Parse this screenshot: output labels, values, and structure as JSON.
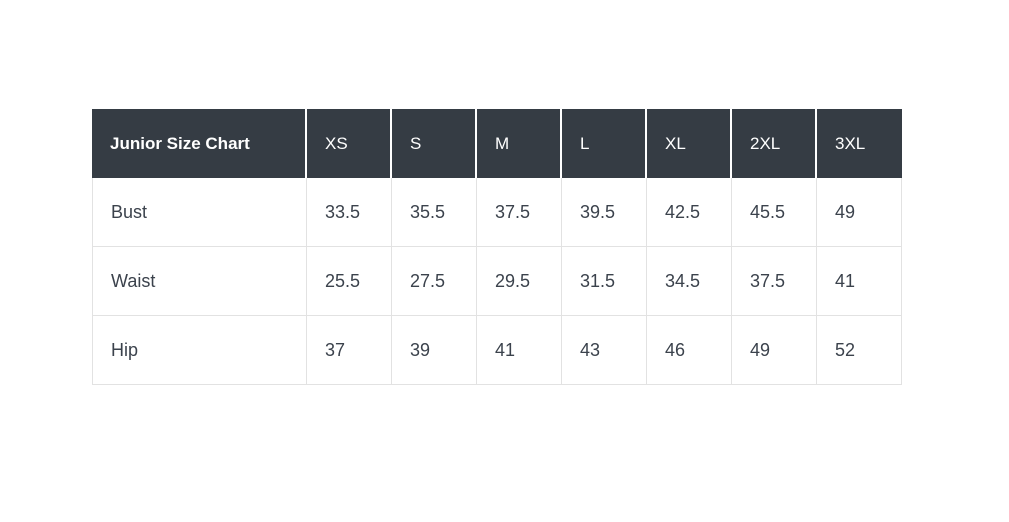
{
  "table": {
    "title": "Junior Size Chart",
    "columns": [
      "XS",
      "S",
      "M",
      "L",
      "XL",
      "2XL",
      "3XL"
    ],
    "rows": [
      {
        "label": "Bust",
        "values": [
          "33.5",
          "35.5",
          "37.5",
          "39.5",
          "42.5",
          "45.5",
          "49"
        ]
      },
      {
        "label": "Waist",
        "values": [
          "25.5",
          "27.5",
          "29.5",
          "31.5",
          "34.5",
          "37.5",
          "41"
        ]
      },
      {
        "label": "Hip",
        "values": [
          "37",
          "39",
          "41",
          "43",
          "46",
          "49",
          "52"
        ]
      }
    ],
    "colors": {
      "header_bg": "#353c44",
      "header_text": "#ffffff",
      "body_text": "#3b424c",
      "border": "#e2e2e2",
      "page_bg": "#ffffff"
    }
  },
  "chart_data": {
    "type": "table",
    "title": "Junior Size Chart",
    "columns": [
      "XS",
      "S",
      "M",
      "L",
      "XL",
      "2XL",
      "3XL"
    ],
    "row_labels": [
      "Bust",
      "Waist",
      "Hip"
    ],
    "values": [
      [
        33.5,
        35.5,
        37.5,
        39.5,
        42.5,
        45.5,
        49
      ],
      [
        25.5,
        27.5,
        29.5,
        31.5,
        34.5,
        37.5,
        41
      ],
      [
        37,
        39,
        41,
        43,
        46,
        49,
        52
      ]
    ],
    "layout_hints": {
      "header_style": "dark charcoal background, white text",
      "grid": "light gray 1px borders on body cells, 2px white separators between header cells"
    }
  }
}
